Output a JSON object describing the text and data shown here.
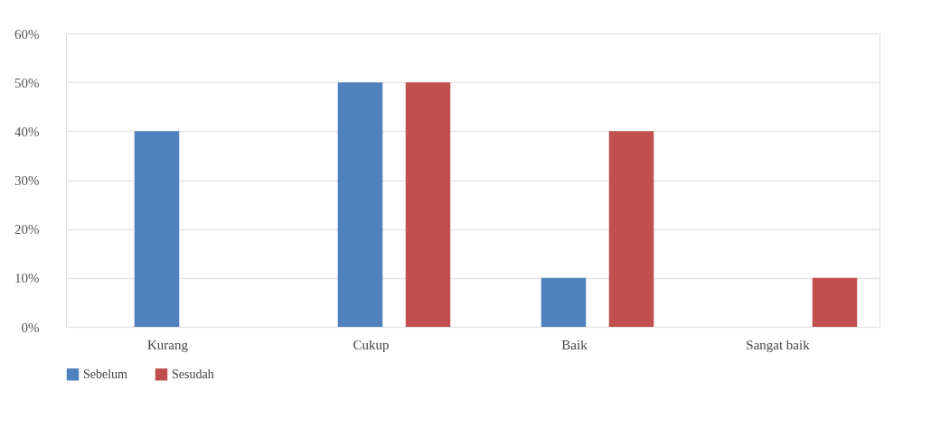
{
  "chart_data": {
    "type": "bar",
    "categories": [
      "Kurang",
      "Cukup",
      "Baik",
      "Sangat baik"
    ],
    "series": [
      {
        "name": "Sebelum",
        "color": "#4f81bd",
        "values": [
          40,
          50,
          10,
          0
        ]
      },
      {
        "name": "Sesudah",
        "color": "#c0504d",
        "values": [
          0,
          50,
          40,
          10
        ]
      }
    ],
    "ylim": [
      0,
      60
    ],
    "yticks": [
      {
        "value": 0,
        "label": "0%"
      },
      {
        "value": 10,
        "label": "10%"
      },
      {
        "value": 20,
        "label": "20%"
      },
      {
        "value": 30,
        "label": "30%"
      },
      {
        "value": 40,
        "label": "40%"
      },
      {
        "value": 50,
        "label": "50%"
      },
      {
        "value": 60,
        "label": "60%"
      }
    ],
    "grid": "y",
    "legend": "bottom"
  }
}
